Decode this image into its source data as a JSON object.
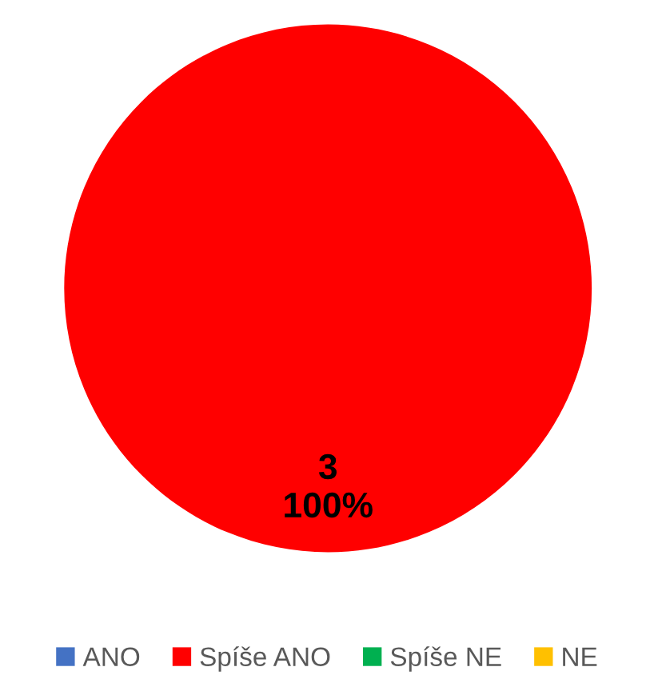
{
  "chart_data": {
    "type": "pie",
    "categories": [
      "ANO",
      "Spíše ANO",
      "Spíše NE",
      "NE"
    ],
    "values": [
      0,
      3,
      0,
      0
    ],
    "colors": [
      "#4472c4",
      "#ff0000",
      "#00b050",
      "#ffc000"
    ],
    "data_labels": true,
    "annotations": [
      {
        "text": "100%",
        "x": "Spíše ANO"
      }
    ],
    "legend": "bottom"
  }
}
